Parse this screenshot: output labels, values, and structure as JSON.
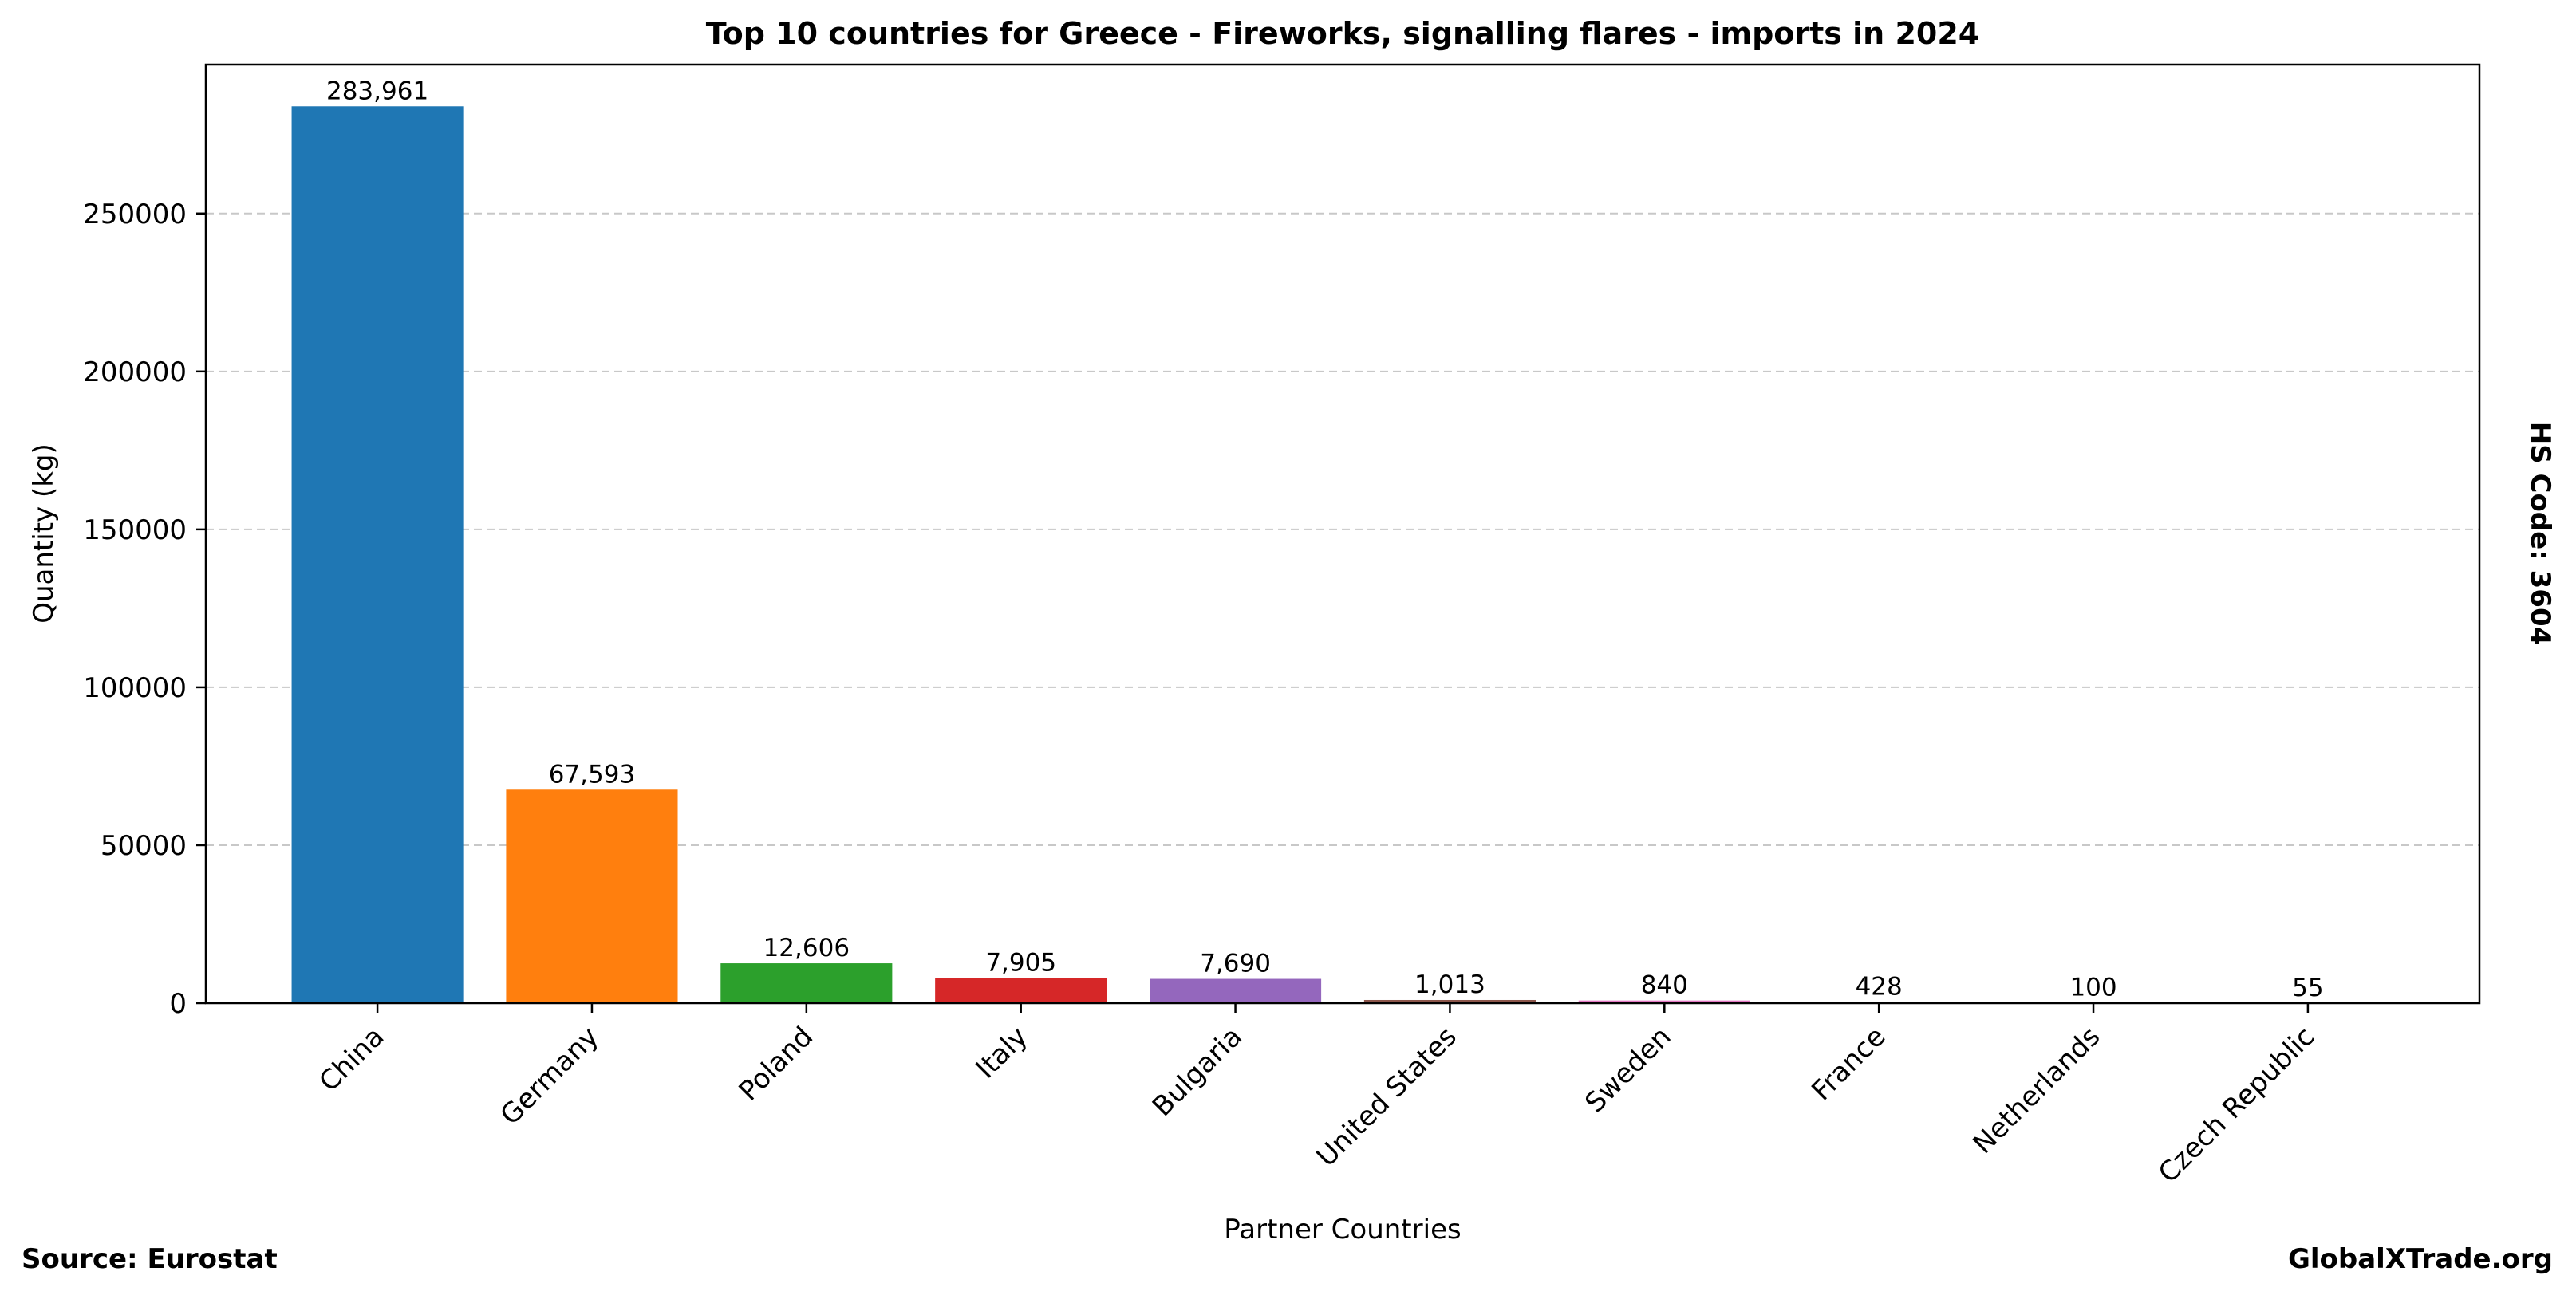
{
  "chart_data": {
    "type": "bar",
    "title": "Top 10 countries for Greece - Fireworks, signalling flares - imports in 2024",
    "xlabel": "Partner Countries",
    "ylabel": "Quantity (kg)",
    "ylim": [
      0,
      297159
    ],
    "yticks": [
      0,
      50000,
      100000,
      150000,
      200000,
      250000
    ],
    "grid": "y-dashed",
    "categories": [
      "China",
      "Germany",
      "Poland",
      "Italy",
      "Bulgaria",
      "United States",
      "Sweden",
      "France",
      "Netherlands",
      "Czech Republic"
    ],
    "values": [
      283961,
      67593,
      12606,
      7905,
      7690,
      1013,
      840,
      428,
      100,
      55
    ],
    "value_labels": [
      "283,961",
      "67,593",
      "12,606",
      "7,905",
      "7,690",
      "1,013",
      "840",
      "428",
      "100",
      "55"
    ],
    "colors": [
      "#1f77b4",
      "#ff7f0e",
      "#2ca02c",
      "#d62728",
      "#9467bd",
      "#8c564b",
      "#e377c2",
      "#7f7f7f",
      "#bcbd22",
      "#17becf"
    ]
  },
  "side_label": "HS Code: 3604",
  "source_label": "Source: Eurostat",
  "brand_label": "GlobalXTrade.org"
}
